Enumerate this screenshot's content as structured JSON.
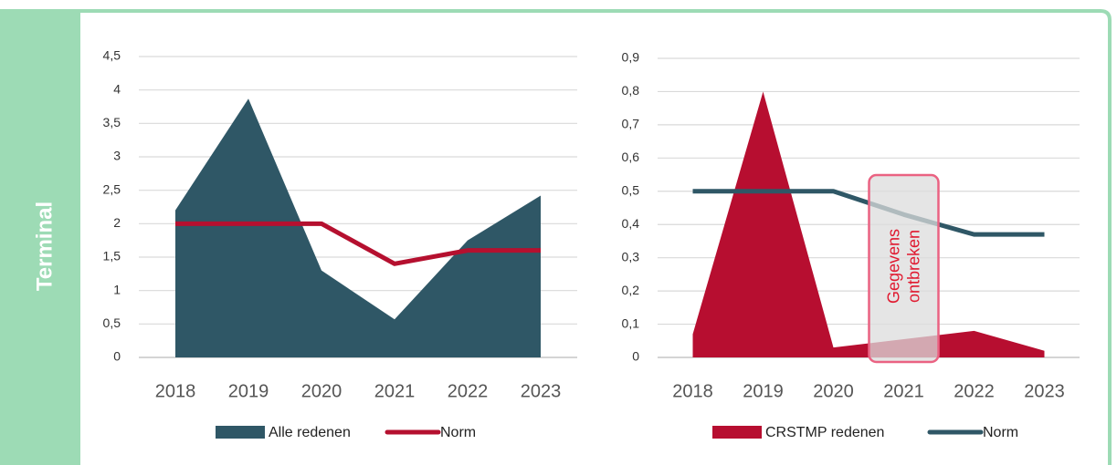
{
  "sidebar": "Terminal",
  "chart_data": [
    {
      "type": "area",
      "categories": [
        "2018",
        "2019",
        "2020",
        "2021",
        "2022",
        "2023"
      ],
      "ylim": [
        0,
        4.5
      ],
      "yticks": [
        0,
        {
          "value": 0.5,
          "label": "0,5"
        },
        1,
        {
          "value": 1.5,
          "label": "1,5"
        },
        2,
        {
          "value": 2.5,
          "label": "2,5"
        },
        3,
        {
          "value": 3.5,
          "label": "3,5"
        },
        4,
        {
          "value": 4.5,
          "label": "4,5"
        }
      ],
      "grid": true,
      "series": [
        {
          "name": "Alle redenen",
          "style": "area",
          "color": "#2f5766",
          "values": [
            2.2,
            3.87,
            1.3,
            0.57,
            1.75,
            2.42
          ]
        },
        {
          "name": "Norm",
          "style": "line",
          "color": "#b5102f",
          "values": [
            2,
            2,
            2,
            1.4,
            1.6,
            1.6
          ]
        }
      ]
    },
    {
      "type": "area",
      "categories": [
        "2018",
        "2019",
        "2020",
        "2021",
        "2022",
        "2023"
      ],
      "ylim": [
        0,
        0.9
      ],
      "yticks": [
        0,
        {
          "value": 0.1,
          "label": "0,1"
        },
        {
          "value": 0.2,
          "label": "0,2"
        },
        {
          "value": 0.3,
          "label": "0,3"
        },
        {
          "value": 0.4,
          "label": "0,4"
        },
        {
          "value": 0.5,
          "label": "0,5"
        },
        {
          "value": 0.6,
          "label": "0,6"
        },
        {
          "value": 0.7,
          "label": "0,7"
        },
        {
          "value": 0.8,
          "label": "0,8"
        },
        {
          "value": 0.9,
          "label": "0,9"
        }
      ],
      "grid": true,
      "series": [
        {
          "name": "CRSTMP redenen",
          "style": "area",
          "color": "#b70e30",
          "values": [
            0.07,
            0.8,
            0.03,
            0.055,
            0.08,
            0.02
          ]
        },
        {
          "name": "Norm",
          "style": "line",
          "color": "#2f5766",
          "values": [
            0.5,
            0.5,
            0.5,
            0.43,
            0.37,
            0.37
          ]
        }
      ],
      "annotation": [
        "Gegevens",
        "ontbreken"
      ]
    }
  ]
}
